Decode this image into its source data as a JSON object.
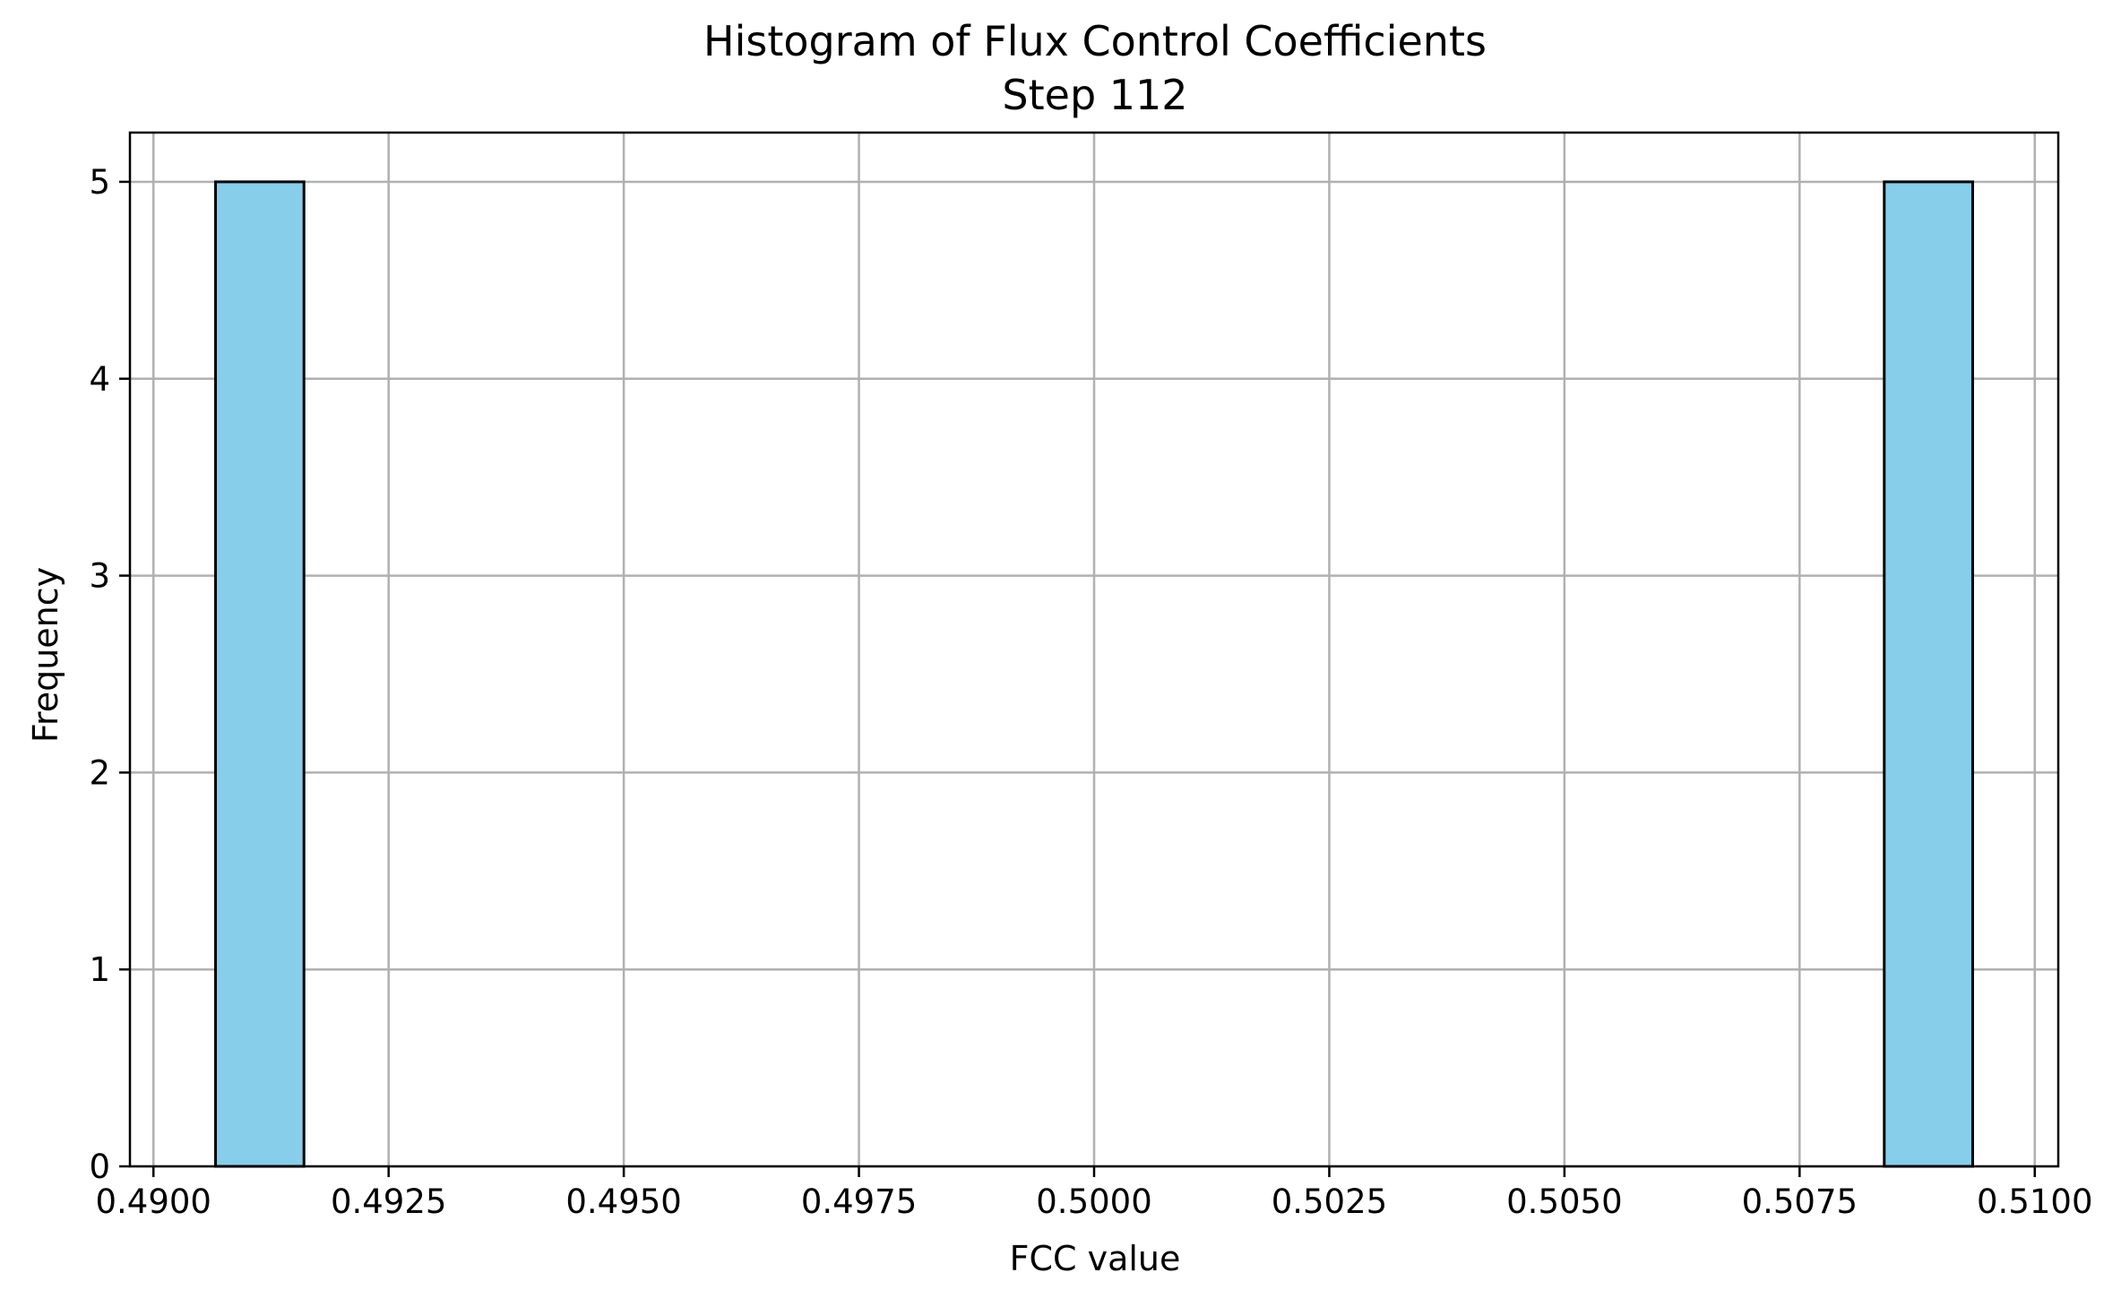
{
  "colors": {
    "bar_fill": "#87CEEB",
    "bar_edge": "#000000",
    "grid": "#b0b0b0",
    "axes": "#000000",
    "background": "#ffffff"
  },
  "chart_data": {
    "type": "bar",
    "title": "Histogram of Flux Control Coefficients",
    "subtitle": "Step 112",
    "xlabel": "FCC value",
    "ylabel": "Frequency",
    "xlim": [
      0.48975,
      0.51025
    ],
    "ylim": [
      0,
      5.25
    ],
    "grid": true,
    "x_ticks": [
      0.49,
      0.4925,
      0.495,
      0.4975,
      0.5,
      0.5025,
      0.505,
      0.5075,
      0.51
    ],
    "x_tick_labels": [
      "0.4900",
      "0.4925",
      "0.4950",
      "0.4975",
      "0.5000",
      "0.5025",
      "0.5050",
      "0.5075",
      "0.5100"
    ],
    "y_ticks": [
      0,
      1,
      2,
      3,
      4,
      5
    ],
    "y_tick_labels": [
      "0",
      "1",
      "2",
      "3",
      "4",
      "5"
    ],
    "bins": [
      {
        "x0": 0.49066,
        "x1": 0.4916,
        "count": 5
      },
      {
        "x0": 0.5084,
        "x1": 0.50934,
        "count": 5
      }
    ]
  }
}
